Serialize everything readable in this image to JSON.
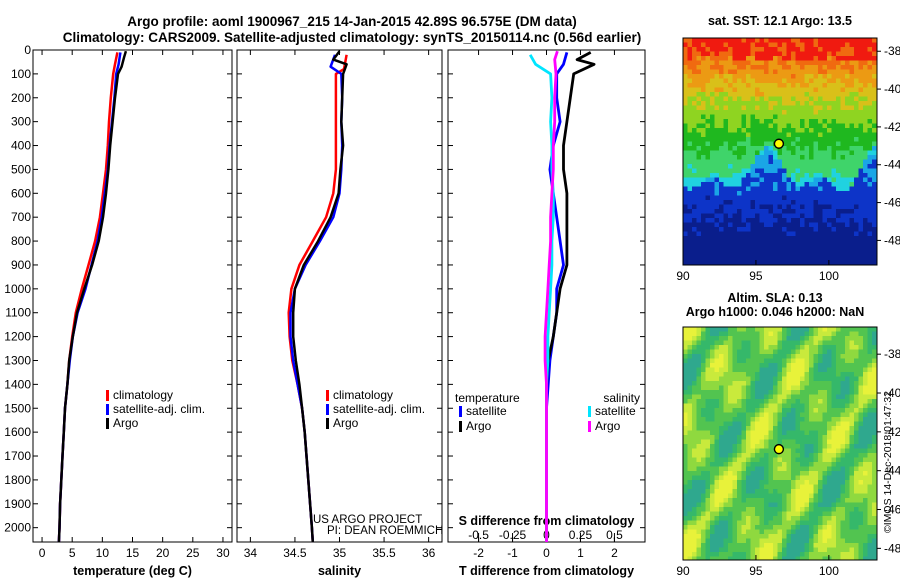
{
  "header": {
    "title_line1": "Argo profile: aoml 1900967_215 14-Jan-2015 42.89S 96.575E (DM data)",
    "title_line2": "Climatology: CARS2009. Satellite-adjusted climatology: synTS_20150114.nc (0.56d earlier)"
  },
  "colors": {
    "climatology": "#ff0000",
    "satellite": "#0000ff",
    "argo": "#000000",
    "argo_salinity_diff": "#ff00ff",
    "satellite_salinity_diff": "#00e5ff"
  },
  "credits": {
    "line1": "US ARGO PROJECT",
    "line2": "PI: DEAN ROEMMICH"
  },
  "watermark": "©IMOS 14-Dec-2018 01:47:32",
  "chart_data": [
    {
      "type": "line",
      "panel": "temperature",
      "xlabel": "temperature (deg C)",
      "xlim": [
        -1.5,
        31.5
      ],
      "xticks": [
        0,
        5,
        10,
        15,
        20,
        25,
        30
      ],
      "ylim": [
        0,
        2060
      ],
      "yticks": [
        0,
        100,
        200,
        300,
        400,
        500,
        600,
        700,
        800,
        900,
        1000,
        1100,
        1200,
        1300,
        1400,
        1500,
        1600,
        1700,
        1800,
        1900,
        2000
      ],
      "legend": [
        "climatology",
        "satellite-adj. clim.",
        "Argo"
      ],
      "series": [
        {
          "name": "climatology",
          "points": [
            [
              12.5,
              10
            ],
            [
              12.1,
              60
            ],
            [
              11.8,
              100
            ],
            [
              11.4,
              200
            ],
            [
              11.1,
              300
            ],
            [
              10.9,
              400
            ],
            [
              10.6,
              500
            ],
            [
              10.1,
              600
            ],
            [
              9.6,
              700
            ],
            [
              8.8,
              800
            ],
            [
              7.7,
              900
            ],
            [
              6.6,
              1000
            ],
            [
              5.6,
              1100
            ],
            [
              5.0,
              1200
            ],
            [
              4.5,
              1300
            ],
            [
              4.2,
              1400
            ],
            [
              3.8,
              1500
            ],
            [
              3.6,
              1600
            ],
            [
              3.4,
              1700
            ],
            [
              3.2,
              1800
            ],
            [
              3.0,
              1900
            ],
            [
              2.9,
              2000
            ],
            [
              2.8,
              2060
            ]
          ]
        },
        {
          "name": "satellite-adj. clim.",
          "points": [
            [
              13.0,
              10
            ],
            [
              12.7,
              60
            ],
            [
              12.3,
              100
            ],
            [
              12.0,
              200
            ],
            [
              11.6,
              300
            ],
            [
              11.2,
              400
            ],
            [
              10.9,
              500
            ],
            [
              10.4,
              600
            ],
            [
              9.9,
              700
            ],
            [
              9.2,
              800
            ],
            [
              8.2,
              900
            ],
            [
              7.2,
              1000
            ],
            [
              5.9,
              1100
            ],
            [
              5.1,
              1200
            ],
            [
              4.6,
              1300
            ],
            [
              4.2,
              1400
            ],
            [
              3.8,
              1500
            ],
            [
              3.6,
              1600
            ],
            [
              3.4,
              1700
            ],
            [
              3.2,
              1800
            ],
            [
              3.0,
              1900
            ],
            [
              2.9,
              2000
            ],
            [
              2.8,
              2060
            ]
          ]
        },
        {
          "name": "Argo",
          "points": [
            [
              13.9,
              5
            ],
            [
              13.6,
              30
            ],
            [
              13.2,
              70
            ],
            [
              12.6,
              100
            ],
            [
              12.1,
              200
            ],
            [
              11.7,
              300
            ],
            [
              11.3,
              400
            ],
            [
              11.0,
              500
            ],
            [
              10.6,
              600
            ],
            [
              10.1,
              700
            ],
            [
              9.4,
              800
            ],
            [
              8.3,
              900
            ],
            [
              7.0,
              1000
            ],
            [
              5.8,
              1100
            ],
            [
              5.1,
              1200
            ],
            [
              4.5,
              1300
            ],
            [
              4.2,
              1400
            ],
            [
              3.8,
              1500
            ],
            [
              3.6,
              1600
            ],
            [
              3.4,
              1700
            ],
            [
              3.2,
              1800
            ],
            [
              3.0,
              1900
            ],
            [
              2.9,
              2000
            ],
            [
              2.8,
              2060
            ]
          ]
        }
      ]
    },
    {
      "type": "line",
      "panel": "salinity",
      "xlabel": "salinity",
      "xlim": [
        33.85,
        36.15
      ],
      "xticks": [
        34,
        34.5,
        35,
        35.5,
        36
      ],
      "ylim": [
        0,
        2060
      ],
      "legend": [
        "climatology",
        "satellite-adj. clim.",
        "Argo"
      ],
      "series": [
        {
          "name": "climatology",
          "points": [
            [
              35.08,
              20
            ],
            [
              35.05,
              80
            ],
            [
              34.96,
              100
            ],
            [
              34.96,
              300
            ],
            [
              34.96,
              500
            ],
            [
              34.93,
              600
            ],
            [
              34.85,
              700
            ],
            [
              34.7,
              800
            ],
            [
              34.55,
              900
            ],
            [
              34.46,
              1000
            ],
            [
              34.43,
              1100
            ],
            [
              34.44,
              1200
            ],
            [
              34.47,
              1300
            ],
            [
              34.53,
              1400
            ],
            [
              34.58,
              1500
            ],
            [
              34.61,
              1600
            ],
            [
              34.63,
              1700
            ],
            [
              34.65,
              1800
            ],
            [
              34.67,
              1900
            ],
            [
              34.69,
              2000
            ],
            [
              34.7,
              2060
            ]
          ]
        },
        {
          "name": "satellite-adj. clim.",
          "points": [
            [
              34.95,
              20
            ],
            [
              34.9,
              70
            ],
            [
              35.02,
              100
            ],
            [
              35.03,
              200
            ],
            [
              35.02,
              300
            ],
            [
              35.03,
              400
            ],
            [
              35.02,
              500
            ],
            [
              35.0,
              600
            ],
            [
              34.93,
              700
            ],
            [
              34.78,
              800
            ],
            [
              34.62,
              900
            ],
            [
              34.5,
              1000
            ],
            [
              34.45,
              1100
            ],
            [
              34.45,
              1200
            ],
            [
              34.48,
              1300
            ],
            [
              34.53,
              1400
            ],
            [
              34.58,
              1500
            ],
            [
              34.61,
              1600
            ],
            [
              34.63,
              1700
            ],
            [
              34.65,
              1800
            ],
            [
              34.67,
              1900
            ],
            [
              34.69,
              2000
            ],
            [
              34.7,
              2060
            ]
          ]
        },
        {
          "name": "Argo",
          "points": [
            [
              35.0,
              5
            ],
            [
              34.93,
              40
            ],
            [
              35.08,
              60
            ],
            [
              35.04,
              100
            ],
            [
              35.03,
              200
            ],
            [
              35.02,
              300
            ],
            [
              35.04,
              400
            ],
            [
              35.01,
              500
            ],
            [
              34.99,
              600
            ],
            [
              34.9,
              700
            ],
            [
              34.76,
              800
            ],
            [
              34.6,
              900
            ],
            [
              34.5,
              1000
            ],
            [
              34.48,
              1100
            ],
            [
              34.48,
              1200
            ],
            [
              34.51,
              1300
            ],
            [
              34.55,
              1400
            ],
            [
              34.58,
              1500
            ],
            [
              34.61,
              1600
            ],
            [
              34.63,
              1700
            ],
            [
              34.65,
              1800
            ],
            [
              34.67,
              1900
            ],
            [
              34.69,
              2000
            ],
            [
              34.7,
              2060
            ]
          ]
        }
      ]
    },
    {
      "type": "line",
      "panel": "difference",
      "xlabel_bottom": "T difference from climatology",
      "xlabel_top": "S difference from climatology",
      "t_xlim": [
        -2.9,
        2.9
      ],
      "t_xticks": [
        -2,
        -1,
        0,
        1,
        2
      ],
      "s_xticks": [
        -0.5,
        -0.25,
        0,
        0.25,
        0.5
      ],
      "s_ticklabels": [
        "-0.5",
        "-0.25",
        "0",
        "0.25",
        "0.5"
      ],
      "s_scale": 4,
      "ylim": [
        0,
        2060
      ],
      "legend_temperature_title": "temperature",
      "legend_salinity_title": "salinity",
      "legend_entries": {
        "satellite": "satellite",
        "argo": "Argo"
      },
      "series": [
        {
          "name": "temperature satellite",
          "quantity": "T",
          "points": [
            [
              0.6,
              10
            ],
            [
              0.5,
              60
            ],
            [
              0.3,
              100
            ],
            [
              0.3,
              200
            ],
            [
              0.4,
              300
            ],
            [
              0.2,
              400
            ],
            [
              0.1,
              500
            ],
            [
              0.2,
              600
            ],
            [
              0.3,
              700
            ],
            [
              0.4,
              800
            ],
            [
              0.5,
              900
            ],
            [
              0.3,
              1000
            ],
            [
              0.3,
              1100
            ],
            [
              0.2,
              1200
            ],
            [
              0.1,
              1300
            ],
            [
              0.05,
              1400
            ],
            [
              0.0,
              1500
            ],
            [
              0.0,
              1600
            ],
            [
              0.0,
              1700
            ],
            [
              0.0,
              1800
            ],
            [
              0.0,
              1900
            ],
            [
              0.0,
              2000
            ],
            [
              0.0,
              2060
            ]
          ]
        },
        {
          "name": "temperature Argo",
          "quantity": "T",
          "points": [
            [
              1.3,
              10
            ],
            [
              0.9,
              40
            ],
            [
              1.4,
              60
            ],
            [
              0.8,
              100
            ],
            [
              0.7,
              200
            ],
            [
              0.6,
              300
            ],
            [
              0.5,
              400
            ],
            [
              0.5,
              500
            ],
            [
              0.6,
              600
            ],
            [
              0.6,
              700
            ],
            [
              0.6,
              800
            ],
            [
              0.6,
              900
            ],
            [
              0.4,
              1000
            ],
            [
              0.3,
              1100
            ],
            [
              0.2,
              1200
            ],
            [
              0.05,
              1300
            ],
            [
              0.0,
              1400
            ],
            [
              0.0,
              1500
            ],
            [
              0.0,
              1600
            ],
            [
              0.0,
              1700
            ],
            [
              0.0,
              1800
            ],
            [
              0.0,
              1900
            ],
            [
              0.0,
              2000
            ],
            [
              0.0,
              2060
            ]
          ]
        },
        {
          "name": "salinity satellite",
          "quantity": "S",
          "points": [
            [
              -0.12,
              20
            ],
            [
              -0.08,
              60
            ],
            [
              0.03,
              100
            ],
            [
              0.04,
              200
            ],
            [
              0.03,
              300
            ],
            [
              0.04,
              400
            ],
            [
              0.04,
              500
            ],
            [
              0.05,
              600
            ],
            [
              0.05,
              700
            ],
            [
              0.04,
              800
            ],
            [
              0.04,
              900
            ],
            [
              0.03,
              1000
            ],
            [
              0.02,
              1100
            ],
            [
              0.01,
              1200
            ],
            [
              0.01,
              1300
            ],
            [
              0.0,
              1400
            ],
            [
              0.0,
              1500
            ],
            [
              0.0,
              1600
            ],
            [
              0.0,
              1700
            ],
            [
              0.0,
              1800
            ],
            [
              0.0,
              1900
            ],
            [
              0.0,
              2000
            ],
            [
              0.0,
              2060
            ]
          ]
        },
        {
          "name": "salinity Argo",
          "quantity": "S",
          "points": [
            [
              0.08,
              5
            ],
            [
              0.06,
              40
            ],
            [
              0.07,
              100
            ],
            [
              0.06,
              200
            ],
            [
              0.06,
              300
            ],
            [
              0.05,
              400
            ],
            [
              0.05,
              500
            ],
            [
              0.04,
              600
            ],
            [
              0.03,
              700
            ],
            [
              0.03,
              800
            ],
            [
              0.02,
              900
            ],
            [
              0.01,
              1000
            ],
            [
              0.0,
              1100
            ],
            [
              -0.01,
              1200
            ],
            [
              -0.01,
              1300
            ],
            [
              0.0,
              1400
            ],
            [
              0.0,
              1500
            ],
            [
              0.0,
              1600
            ],
            [
              0.0,
              1700
            ],
            [
              0.0,
              1800
            ],
            [
              0.0,
              1900
            ],
            [
              0.0,
              2000
            ],
            [
              0.0,
              2060
            ]
          ]
        }
      ]
    },
    {
      "type": "heatmap",
      "panel": "sst_map",
      "title": "sat. SST: 12.1 Argo: 13.5",
      "xlim": [
        90,
        103.3
      ],
      "ylim": [
        -49.3,
        -37.3
      ],
      "xticks": [
        90,
        95,
        100
      ],
      "yticks": [
        -38,
        -40,
        -42,
        -44,
        -46,
        -48
      ],
      "marker": {
        "lon": 96.575,
        "lat": -42.89
      }
    },
    {
      "type": "heatmap",
      "panel": "sla_map",
      "title_line1": "Altim. SLA: 0.13",
      "title_line2": "Argo h1000: 0.046 h2000: NaN",
      "xlim": [
        90,
        103.3
      ],
      "ylim": [
        -48.6,
        -36.6
      ],
      "xticks": [
        90,
        95,
        100
      ],
      "yticks": [
        -38,
        -40,
        -42,
        -44,
        -46,
        -48
      ],
      "marker": {
        "lon": 96.575,
        "lat": -42.89
      }
    }
  ]
}
